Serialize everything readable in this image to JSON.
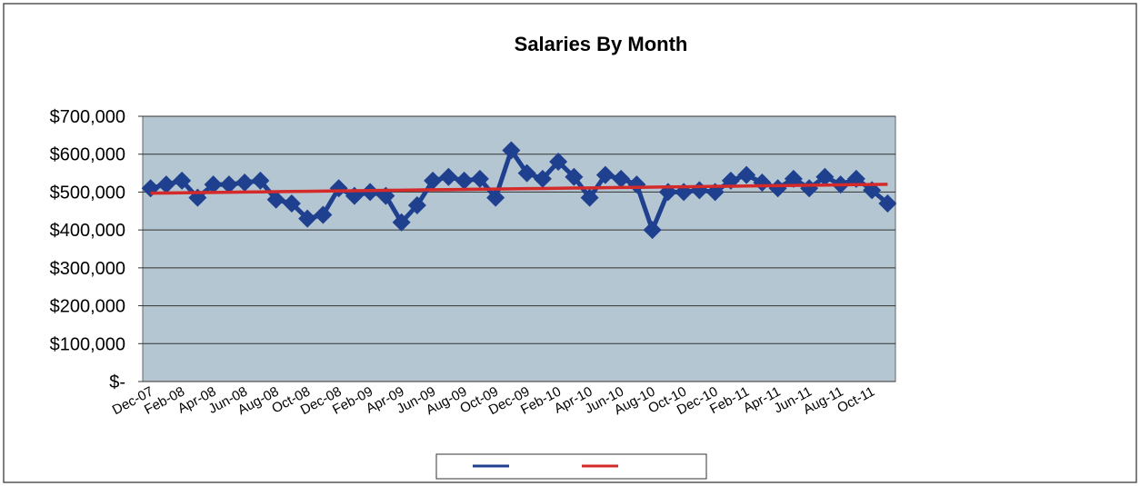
{
  "chart_data": {
    "type": "line",
    "title": "Salaries By Month",
    "categories": [
      "Dec-07",
      null,
      "Feb-08",
      null,
      "Apr-08",
      null,
      "Jun-08",
      null,
      "Aug-08",
      null,
      "Oct-08",
      null,
      "Dec-08",
      null,
      "Feb-09",
      null,
      "Apr-09",
      null,
      "Jun-09",
      null,
      "Aug-09",
      null,
      "Oct-09",
      null,
      "Dec-09",
      null,
      "Feb-10",
      null,
      "Apr-10",
      null,
      "Jun-10",
      null,
      "Aug-10",
      null,
      "Oct-10",
      null,
      "Dec-10",
      null,
      "Feb-11",
      null,
      "Apr-11",
      null,
      "Jun-11",
      null,
      "Aug-11",
      null,
      "Oct-11",
      null
    ],
    "series": [
      {
        "color": "#1f3f8f",
        "marker": "diamond",
        "values": [
          510000,
          520000,
          530000,
          485000,
          520000,
          520000,
          525000,
          530000,
          480000,
          470000,
          430000,
          440000,
          510000,
          490000,
          500000,
          490000,
          420000,
          465000,
          530000,
          540000,
          530000,
          535000,
          485000,
          610000,
          550000,
          535000,
          580000,
          540000,
          485000,
          545000,
          535000,
          520000,
          400000,
          500000,
          500000,
          505000,
          500000,
          530000,
          545000,
          525000,
          510000,
          535000,
          510000,
          540000,
          520000,
          535000,
          505000,
          470000
        ]
      },
      {
        "color": "#d42a2a",
        "values": [
          497000,
          497500,
          498000,
          498500,
          499000,
          499500,
          500000,
          500500,
          501000,
          501500,
          502000,
          502500,
          503000,
          503500,
          504000,
          504500,
          505000,
          505500,
          506000,
          506500,
          507000,
          507500,
          508000,
          508500,
          509000,
          509500,
          510000,
          510500,
          511000,
          511500,
          512000,
          512500,
          513000,
          513500,
          514000,
          514500,
          515000,
          515500,
          516000,
          516500,
          517000,
          517500,
          518000,
          518500,
          519000,
          519500,
          520000,
          520500
        ]
      }
    ],
    "ylim": [
      0,
      700000
    ],
    "yticks": [
      {
        "value": 0,
        "label": "$-"
      },
      {
        "value": 100000,
        "label": "$100,000"
      },
      {
        "value": 200000,
        "label": "$200,000"
      },
      {
        "value": 300000,
        "label": "$300,000"
      },
      {
        "value": 400000,
        "label": "$400,000"
      },
      {
        "value": 500000,
        "label": "$500,000"
      },
      {
        "value": 600000,
        "label": "$600,000"
      },
      {
        "value": 700000,
        "label": "$700,000"
      }
    ],
    "grid": true,
    "legend": "bottom",
    "plot_background": "#b4c6d2"
  }
}
